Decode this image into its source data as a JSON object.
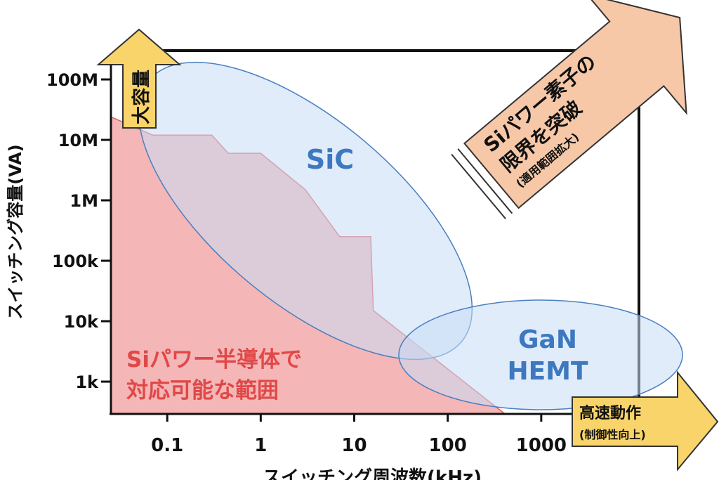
{
  "chart_data": {
    "type": "area",
    "x_label": "スイッチング周波数(kHz)",
    "y_label": "スイッチング容量(VA)",
    "x": [
      0.025,
      0.07,
      0.3,
      0.45,
      1,
      3,
      7,
      15,
      16,
      400
    ],
    "series": [
      {
        "name": "Siパワー半導体で対応可能な範囲",
        "color": "#f4b6b6",
        "values": [
          24000000,
          12000000,
          12000000,
          6000000,
          6000000,
          1500000,
          250000,
          250000,
          15000,
          300
        ]
      }
    ],
    "xlim": [
      0.025,
      10000
    ],
    "ylim": [
      300,
      300000000
    ],
    "log_x": true,
    "log_y": true,
    "xticks": [
      0.1,
      1,
      10,
      100,
      1000
    ],
    "yticks": [
      {
        "value": 1000,
        "label": "1k"
      },
      {
        "value": 10000,
        "label": "10k"
      },
      {
        "value": 100000,
        "label": "100k"
      },
      {
        "value": 1000000,
        "label": "1M"
      },
      {
        "value": 10000000,
        "label": "10M"
      },
      {
        "value": 100000000,
        "label": "100M"
      }
    ],
    "region_label": [
      "Siパワー半導体で",
      "対応可能な範囲"
    ],
    "ellipse_labels": {
      "sic": "SiC",
      "gan": [
        "GaN",
        "HEMT"
      ]
    },
    "arrow_up": "大容量",
    "arrow_right": [
      "高速動作",
      "(制御性向上)"
    ],
    "arrow_diag": [
      "Siパワー素子の",
      "限界を突破",
      "(適用範囲拡大)"
    ]
  }
}
